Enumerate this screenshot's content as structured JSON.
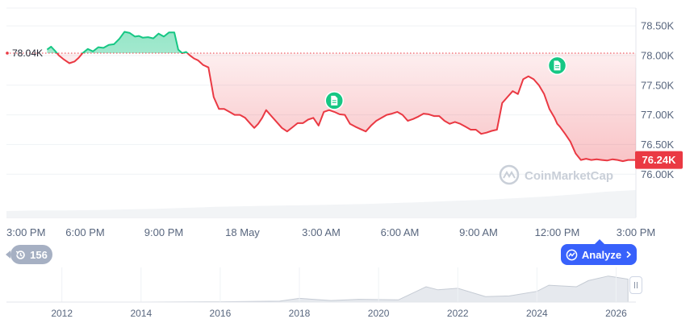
{
  "chart_data": {
    "type": "line",
    "y_axis": {
      "ticks": [
        "78.50K",
        "78.00K",
        "77.50K",
        "77.00K",
        "76.50K",
        "76.00K"
      ],
      "tick_values": [
        78500,
        78000,
        77500,
        77000,
        76500,
        76000
      ],
      "ylim": [
        75800,
        78800
      ],
      "position": "right"
    },
    "x_axis": {
      "ticks": [
        "3:00 PM",
        "6:00 PM",
        "9:00 PM",
        "18 May",
        "3:00 AM",
        "6:00 AM",
        "9:00 AM",
        "12:00 PM",
        "3:00 PM"
      ],
      "tick_hours": [
        0,
        3,
        6,
        9,
        12,
        15,
        18,
        21,
        24
      ],
      "xlim_hours": [
        0,
        24
      ]
    },
    "reference": {
      "value": 78040,
      "label": "78.04K"
    },
    "last_price": {
      "value": 76240,
      "label": "76.24K"
    },
    "colors": {
      "above": "#16c784",
      "below": "#ea3943",
      "reference_label_dot": "#ea3943"
    },
    "series": [
      {
        "x_hours": [
          1.55,
          1.7,
          1.85,
          2.0,
          2.2,
          2.4,
          2.6,
          2.75,
          2.9,
          3.1,
          3.3,
          3.5,
          3.7,
          3.9,
          4.1,
          4.3,
          4.5,
          4.7,
          4.9,
          5.05,
          5.2,
          5.4,
          5.6,
          5.8,
          6.0,
          6.2,
          6.4,
          6.55,
          6.7,
          6.85,
          7.0,
          7.15,
          7.3,
          7.5,
          7.7,
          7.9,
          8.1,
          8.3,
          8.5,
          8.7,
          8.9,
          9.1,
          9.3,
          9.45,
          9.6,
          9.75,
          9.9,
          10.1,
          10.3,
          10.5,
          10.7,
          10.9,
          11.1,
          11.3,
          11.5,
          11.7,
          11.9,
          12.1,
          12.3,
          12.5,
          12.7,
          12.9,
          13.1,
          13.3,
          13.5,
          13.7,
          13.9,
          14.1,
          14.3,
          14.5,
          14.7,
          14.9,
          15.1,
          15.3,
          15.5,
          15.7,
          15.9,
          16.1,
          16.3,
          16.5,
          16.7,
          16.9,
          17.1,
          17.3,
          17.5,
          17.7,
          17.9,
          18.1,
          18.3,
          18.5,
          18.7,
          18.9,
          19.1,
          19.3,
          19.5,
          19.7,
          19.9,
          20.1,
          20.3,
          20.5,
          20.7,
          20.9,
          21.0,
          21.1,
          21.3,
          21.5,
          21.7,
          21.9,
          22.1,
          22.3,
          22.5,
          22.7,
          22.9,
          23.1,
          23.3,
          23.5,
          23.7,
          23.85,
          24.0
        ],
        "y": [
          78100,
          78150,
          78080,
          78000,
          77930,
          77870,
          77900,
          77960,
          78040,
          78110,
          78070,
          78140,
          78130,
          78180,
          78190,
          78280,
          78400,
          78380,
          78320,
          78330,
          78300,
          78310,
          78290,
          78370,
          78320,
          78390,
          78390,
          78100,
          78040,
          78060,
          78000,
          77950,
          77920,
          77840,
          77800,
          77300,
          77100,
          77100,
          77050,
          77000,
          77000,
          76950,
          76850,
          76780,
          76850,
          76950,
          77080,
          76980,
          76880,
          76780,
          76720,
          76790,
          76860,
          76860,
          76920,
          76950,
          76820,
          77050,
          77080,
          77050,
          77010,
          77000,
          76850,
          76800,
          76760,
          76720,
          76820,
          76900,
          76950,
          77000,
          77020,
          77050,
          77000,
          76900,
          76930,
          76970,
          77020,
          77010,
          76980,
          76980,
          76900,
          76850,
          76880,
          76850,
          76800,
          76750,
          76750,
          76680,
          76700,
          76730,
          76750,
          77200,
          77300,
          77400,
          77350,
          77600,
          77650,
          77600,
          77500,
          77350,
          77100,
          76950,
          76850,
          76800,
          76680,
          76550,
          76350,
          76240,
          76260,
          76240,
          76250,
          76240,
          76230,
          76250,
          76240,
          76220,
          76240,
          76240,
          76240
        ]
      }
    ],
    "volume": {
      "description": "light gray volume band under the main chart, gradually rising toward the right",
      "relative_values": [
        0.2,
        0.22,
        0.22,
        0.23,
        0.25,
        0.27,
        0.3,
        0.33,
        0.35,
        0.37,
        0.38,
        0.4,
        0.42,
        0.45,
        0.48,
        0.52,
        0.55,
        0.6,
        0.65,
        0.72,
        0.8,
        0.85
      ]
    },
    "event_markers": [
      {
        "type": "news",
        "x_hours": 12.5,
        "y": 77010
      },
      {
        "type": "news",
        "x_hours": 21.0,
        "y": 77600
      }
    ],
    "watermark": "CoinMarketCap"
  },
  "navigator": {
    "year_ticks": [
      "2012",
      "2014",
      "2016",
      "2018",
      "2020",
      "2022",
      "2024",
      "2026"
    ],
    "tick_years": [
      2012,
      2014,
      2016,
      2018,
      2020,
      2022,
      2024,
      2026
    ],
    "year_range": [
      2010.6,
      2026.5
    ],
    "series_years": [
      2010.6,
      2014,
      2016,
      2017.5,
      2018,
      2018.8,
      2019.5,
      2020.5,
      2021.2,
      2021.5,
      2022.0,
      2022.7,
      2023.3,
      2024.0,
      2024.3,
      2025.0,
      2025.3,
      2025.8,
      2026.3
    ],
    "series_relative": [
      0,
      0,
      0.01,
      0.03,
      0.12,
      0.05,
      0.09,
      0.07,
      0.5,
      0.4,
      0.45,
      0.18,
      0.2,
      0.35,
      0.55,
      0.5,
      0.7,
      0.85,
      0.75
    ]
  },
  "controls": {
    "history_count": "156",
    "analyze_label": "Analyze"
  }
}
